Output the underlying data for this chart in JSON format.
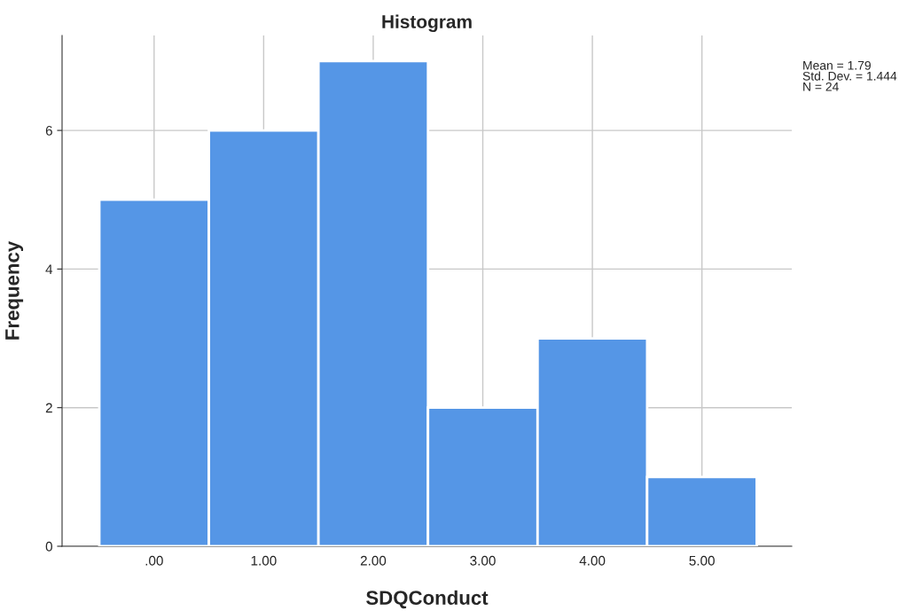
{
  "chart_data": {
    "type": "histogram",
    "title": "Histogram",
    "xlabel": "SDQConduct",
    "ylabel": "Frequency",
    "bins": [
      -0.5,
      0.5,
      1.5,
      2.5,
      3.5,
      4.5,
      5.5
    ],
    "values": [
      5,
      6,
      7,
      2,
      3,
      1
    ],
    "color": "#5596e6",
    "xlim": [
      -0.84,
      5.82
    ],
    "xticks": [
      {
        "value": 0,
        "label": ".00"
      },
      {
        "value": 1,
        "label": "1.00"
      },
      {
        "value": 2,
        "label": "2.00"
      },
      {
        "value": 3,
        "label": "3.00"
      },
      {
        "value": 4,
        "label": "4.00"
      },
      {
        "value": 5,
        "label": "5.00"
      }
    ],
    "ylim": [
      0,
      7.37
    ],
    "yticks": [
      0,
      2,
      4,
      6
    ],
    "grid": true,
    "annotations": [
      "Mean = 1.79",
      "Std. Dev. = 1.444",
      "N = 24"
    ]
  }
}
